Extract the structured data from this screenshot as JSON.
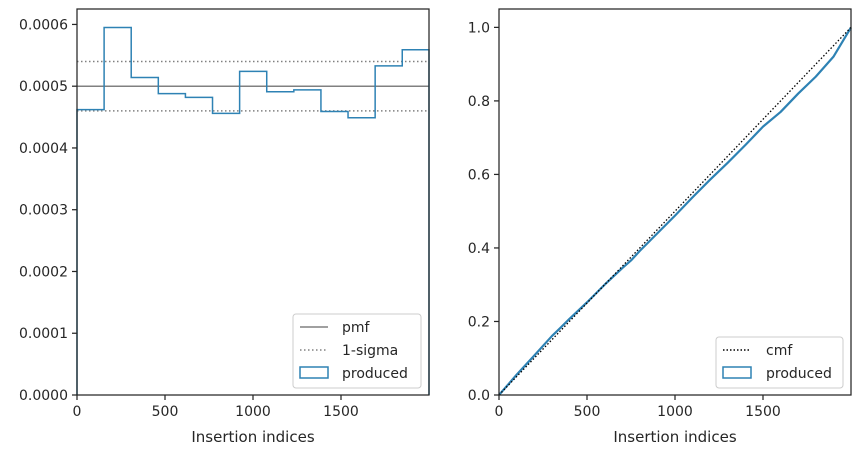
{
  "colors": {
    "produced": "#2e82b4",
    "pmf": "#808080",
    "sigma": "#808080",
    "cmf": "#000000",
    "axes": "#262626"
  },
  "chart_data": [
    {
      "type": "histogram",
      "xlabel": "Insertion indices",
      "ylabel": "",
      "xlim": [
        0,
        2000
      ],
      "ylim": [
        0,
        0.000625
      ],
      "xticks": [
        0,
        500,
        1000,
        1500
      ],
      "yticks": [
        0,
        0.0001,
        0.0002,
        0.0003,
        0.0004,
        0.0005,
        0.0006
      ],
      "ytick_labels": [
        "0.0000",
        "0.0001",
        "0.0002",
        "0.0003",
        "0.0004",
        "0.0005",
        "0.0006"
      ],
      "legend": {
        "position": "lower-right",
        "entries": [
          "pmf",
          "1-sigma",
          "produced"
        ]
      },
      "bin_edges": [
        0,
        154,
        308,
        462,
        616,
        770,
        924,
        1078,
        1232,
        1386,
        1540,
        1694,
        1848,
        2000
      ],
      "produced": [
        0.000462,
        0.000595,
        0.000514,
        0.000488,
        0.000482,
        0.000456,
        0.000524,
        0.000491,
        0.000494,
        0.000459,
        0.000449,
        0.000533,
        0.000559
      ],
      "pmf": 0.0005,
      "sigma_band": [
        0.00046,
        0.00054
      ]
    },
    {
      "type": "line",
      "xlabel": "Insertion indices",
      "ylabel": "",
      "xlim": [
        0,
        2000
      ],
      "ylim": [
        0,
        1.05
      ],
      "xticks": [
        0,
        500,
        1000,
        1500
      ],
      "yticks": [
        0,
        0.2,
        0.4,
        0.6,
        0.8,
        1.0
      ],
      "ytick_labels": [
        "0.0",
        "0.2",
        "0.4",
        "0.6",
        "0.8",
        "1.0"
      ],
      "legend": {
        "position": "lower-right",
        "entries": [
          "cmf",
          "produced"
        ]
      },
      "cmf": {
        "x": [
          0,
          2000
        ],
        "y": [
          0,
          1
        ]
      },
      "produced": {
        "x": [
          0,
          100,
          200,
          300,
          350,
          400,
          500,
          600,
          700,
          750,
          800,
          900,
          1000,
          1100,
          1200,
          1300,
          1400,
          1500,
          1600,
          1700,
          1800,
          1900,
          2000
        ],
        "y": [
          0,
          0.055,
          0.107,
          0.16,
          0.183,
          0.207,
          0.252,
          0.3,
          0.345,
          0.366,
          0.392,
          0.44,
          0.488,
          0.538,
          0.586,
          0.632,
          0.68,
          0.73,
          0.77,
          0.82,
          0.866,
          0.92,
          1.0
        ]
      }
    }
  ]
}
